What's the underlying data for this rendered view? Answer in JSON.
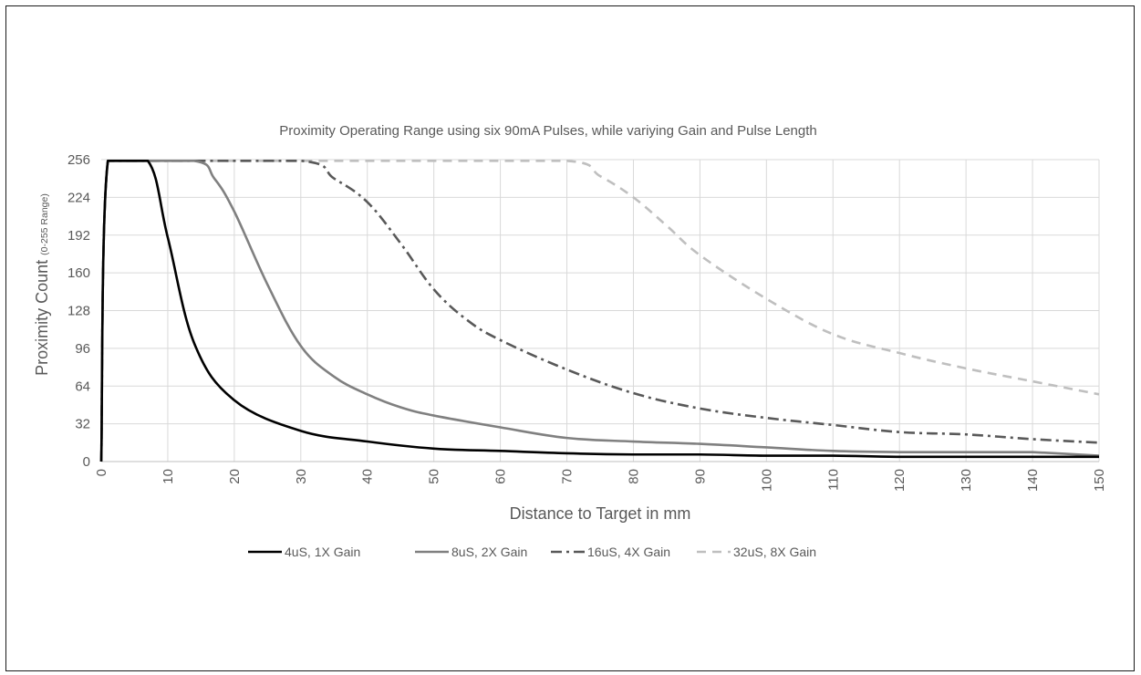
{
  "chart_data": {
    "type": "line",
    "title": "Proximity Operating Range using six 90mA Pulses, while variying Gain and Pulse Length",
    "xlabel": "Distance to Target in mm",
    "ylabel_main": "Proximity Count",
    "ylabel_sub": "(0-255 Range)",
    "xlim": [
      0,
      150
    ],
    "ylim": [
      0,
      256
    ],
    "x_ticks": [
      0,
      10,
      20,
      30,
      40,
      50,
      60,
      70,
      80,
      90,
      100,
      110,
      120,
      130,
      140,
      150
    ],
    "y_ticks": [
      0,
      32,
      64,
      96,
      128,
      160,
      192,
      224,
      256
    ],
    "grid": true,
    "legend_position": "bottom",
    "series": [
      {
        "name": "4uS, 1X Gain",
        "color": "#000000",
        "dash": "solid",
        "points": [
          [
            0,
            0
          ],
          [
            1,
            255
          ],
          [
            7,
            255
          ],
          [
            10,
            190
          ],
          [
            14,
            100
          ],
          [
            20,
            52
          ],
          [
            30,
            26
          ],
          [
            40,
            17
          ],
          [
            50,
            11
          ],
          [
            60,
            9
          ],
          [
            70,
            7
          ],
          [
            80,
            6
          ],
          [
            90,
            6
          ],
          [
            100,
            5
          ],
          [
            110,
            5
          ],
          [
            120,
            4
          ],
          [
            130,
            4
          ],
          [
            140,
            4
          ],
          [
            150,
            4
          ]
        ]
      },
      {
        "name": "8uS, 2X Gain",
        "color": "#808080",
        "dash": "solid",
        "points": [
          [
            0,
            0
          ],
          [
            1,
            255
          ],
          [
            14,
            255
          ],
          [
            17,
            240
          ],
          [
            20,
            212
          ],
          [
            25,
            150
          ],
          [
            30,
            98
          ],
          [
            35,
            72
          ],
          [
            40,
            57
          ],
          [
            45,
            46
          ],
          [
            50,
            39
          ],
          [
            60,
            29
          ],
          [
            70,
            20
          ],
          [
            80,
            17
          ],
          [
            90,
            15
          ],
          [
            100,
            12
          ],
          [
            110,
            9
          ],
          [
            120,
            8
          ],
          [
            130,
            8
          ],
          [
            137,
            8
          ],
          [
            140,
            8
          ],
          [
            150,
            5
          ]
        ]
      },
      {
        "name": "16uS, 4X Gain",
        "color": "#595959",
        "dash": "dashdot",
        "points": [
          [
            0,
            0
          ],
          [
            1,
            255
          ],
          [
            30,
            255
          ],
          [
            35,
            240
          ],
          [
            40,
            220
          ],
          [
            45,
            185
          ],
          [
            50,
            146
          ],
          [
            55,
            120
          ],
          [
            60,
            103
          ],
          [
            70,
            78
          ],
          [
            80,
            58
          ],
          [
            90,
            45
          ],
          [
            100,
            37
          ],
          [
            110,
            31
          ],
          [
            120,
            25
          ],
          [
            130,
            23
          ],
          [
            140,
            19
          ],
          [
            150,
            16
          ]
        ]
      },
      {
        "name": "32uS, 8X Gain",
        "color": "#bfbfbf",
        "dash": "dashed",
        "points": [
          [
            0,
            0
          ],
          [
            1,
            255
          ],
          [
            70,
            255
          ],
          [
            75,
            242
          ],
          [
            80,
            224
          ],
          [
            85,
            200
          ],
          [
            90,
            175
          ],
          [
            100,
            138
          ],
          [
            110,
            108
          ],
          [
            120,
            92
          ],
          [
            130,
            79
          ],
          [
            140,
            68
          ],
          [
            150,
            57
          ]
        ]
      }
    ]
  }
}
